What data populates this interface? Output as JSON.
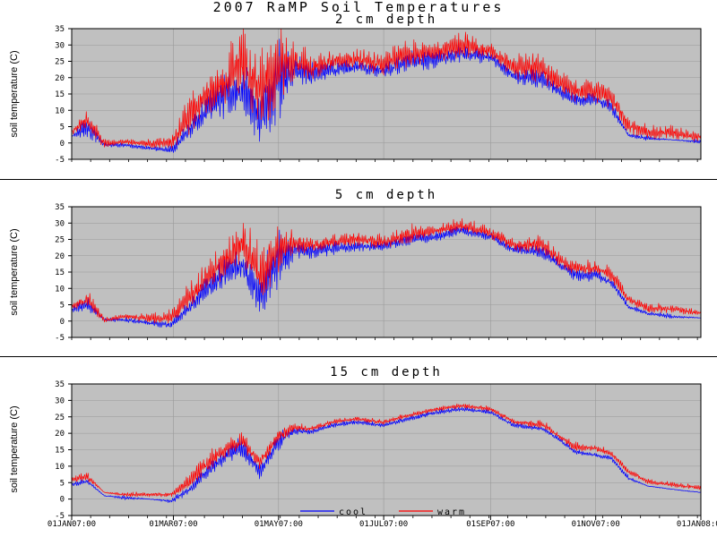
{
  "title": "2007 RaMP Soil Temperatures",
  "chart_data": [
    {
      "type": "line",
      "subtitle": "2 cm depth",
      "ylabel": "soil temperature (C)",
      "ylim": [
        -5,
        35
      ],
      "yticks": [
        -5,
        0,
        5,
        10,
        15,
        20,
        25,
        30,
        35
      ],
      "xlim": [
        "2007-01-01",
        "2008-01-01"
      ],
      "grid": true,
      "series": [
        {
          "name": "cool",
          "color": "#0000ff",
          "x": [
            "2007-01-01",
            "2007-01-10",
            "2007-01-20",
            "2007-02-01",
            "2007-02-15",
            "2007-02-28",
            "2007-03-10",
            "2007-03-20",
            "2007-04-01",
            "2007-04-10",
            "2007-04-20",
            "2007-05-01",
            "2007-05-10",
            "2007-05-20",
            "2007-06-01",
            "2007-06-15",
            "2007-07-01",
            "2007-07-15",
            "2007-08-01",
            "2007-08-15",
            "2007-09-01",
            "2007-09-15",
            "2007-10-01",
            "2007-10-10",
            "2007-10-20",
            "2007-11-01",
            "2007-11-10",
            "2007-11-20",
            "2007-12-01",
            "2007-12-15",
            "2008-01-01"
          ],
          "values": [
            2,
            3,
            -1,
            -1,
            -2,
            -3,
            2,
            7,
            11,
            13,
            2,
            12,
            20,
            19,
            21,
            22,
            21,
            23,
            24,
            26,
            25,
            19,
            18,
            15,
            12,
            12,
            10,
            2,
            1,
            1,
            0
          ],
          "high": [
            2,
            8,
            0,
            0,
            -1,
            -1,
            6,
            14,
            22,
            22,
            15,
            31,
            26,
            24,
            25,
            25,
            24,
            28,
            28,
            30,
            28,
            22,
            22,
            18,
            15,
            15,
            13,
            3,
            2,
            1,
            1
          ]
        },
        {
          "name": "warm",
          "color": "#ff0000",
          "x": [
            "2007-01-01",
            "2007-01-10",
            "2007-01-20",
            "2007-02-01",
            "2007-02-15",
            "2007-02-28",
            "2007-03-10",
            "2007-03-20",
            "2007-04-01",
            "2007-04-10",
            "2007-04-20",
            "2007-05-01",
            "2007-05-10",
            "2007-05-20",
            "2007-06-01",
            "2007-06-15",
            "2007-07-01",
            "2007-07-15",
            "2007-08-01",
            "2007-08-15",
            "2007-09-01",
            "2007-09-15",
            "2007-10-01",
            "2007-10-10",
            "2007-10-20",
            "2007-11-01",
            "2007-11-10",
            "2007-11-20",
            "2007-12-01",
            "2007-12-15",
            "2008-01-01"
          ],
          "values": [
            3,
            5,
            -1,
            0,
            -1,
            -1,
            5,
            11,
            15,
            19,
            9,
            16,
            22,
            21,
            23,
            24,
            22,
            25,
            26,
            28,
            27,
            21,
            20,
            17,
            14,
            14,
            12,
            4,
            2,
            2,
            1
          ],
          "high": [
            4,
            10,
            1,
            1,
            1,
            2,
            14,
            20,
            27,
            34,
            27,
            33,
            30,
            27,
            28,
            28,
            27,
            31,
            30,
            34,
            30,
            26,
            28,
            22,
            19,
            20,
            17,
            8,
            5,
            5,
            3
          ]
        }
      ]
    },
    {
      "type": "line",
      "subtitle": "5 cm depth",
      "ylabel": "soil temperature (C)",
      "ylim": [
        -5,
        35
      ],
      "yticks": [
        -5,
        0,
        5,
        10,
        15,
        20,
        25,
        30,
        35
      ],
      "xlim": [
        "2007-01-01",
        "2008-01-01"
      ],
      "grid": true,
      "series": [
        {
          "name": "cool",
          "color": "#0000ff",
          "x": [
            "2007-01-01",
            "2007-01-10",
            "2007-01-20",
            "2007-02-01",
            "2007-02-15",
            "2007-02-28",
            "2007-03-10",
            "2007-03-20",
            "2007-04-01",
            "2007-04-10",
            "2007-04-20",
            "2007-05-01",
            "2007-05-10",
            "2007-05-20",
            "2007-06-01",
            "2007-06-15",
            "2007-07-01",
            "2007-07-15",
            "2007-08-01",
            "2007-08-15",
            "2007-09-01",
            "2007-09-15",
            "2007-10-01",
            "2007-10-10",
            "2007-10-20",
            "2007-11-01",
            "2007-11-10",
            "2007-11-20",
            "2007-12-01",
            "2007-12-15",
            "2008-01-01"
          ],
          "values": [
            3,
            4,
            0,
            0,
            -1,
            -2,
            3,
            8,
            13,
            15,
            4,
            14,
            20,
            20,
            21,
            22,
            22,
            24,
            25,
            27,
            25,
            21,
            20,
            17,
            13,
            13,
            11,
            4,
            2,
            1,
            1
          ],
          "high": [
            4,
            7,
            1,
            1,
            0,
            0,
            6,
            13,
            19,
            20,
            14,
            28,
            24,
            23,
            24,
            24,
            24,
            27,
            27,
            29,
            27,
            23,
            23,
            19,
            16,
            16,
            13,
            5,
            3,
            2,
            1
          ]
        },
        {
          "name": "warm",
          "color": "#ff0000",
          "x": [
            "2007-01-01",
            "2007-01-10",
            "2007-01-20",
            "2007-02-01",
            "2007-02-15",
            "2007-02-28",
            "2007-03-10",
            "2007-03-20",
            "2007-04-01",
            "2007-04-10",
            "2007-04-20",
            "2007-05-01",
            "2007-05-10",
            "2007-05-20",
            "2007-06-01",
            "2007-06-15",
            "2007-07-01",
            "2007-07-15",
            "2007-08-01",
            "2007-08-15",
            "2007-09-01",
            "2007-09-15",
            "2007-10-01",
            "2007-10-10",
            "2007-10-20",
            "2007-11-01",
            "2007-11-10",
            "2007-11-20",
            "2007-12-01",
            "2007-12-15",
            "2008-01-01"
          ],
          "values": [
            4,
            5,
            0,
            1,
            0,
            0,
            5,
            11,
            16,
            19,
            10,
            17,
            22,
            22,
            23,
            24,
            23,
            25,
            27,
            28,
            26,
            22,
            22,
            18,
            15,
            15,
            13,
            6,
            3,
            3,
            2
          ],
          "high": [
            5,
            9,
            1,
            2,
            2,
            3,
            11,
            17,
            25,
            30,
            23,
            29,
            27,
            25,
            26,
            27,
            26,
            29,
            29,
            31,
            29,
            25,
            26,
            21,
            18,
            18,
            16,
            8,
            5,
            5,
            3
          ]
        }
      ]
    },
    {
      "type": "line",
      "subtitle": "15 cm depth",
      "ylabel": "soil temperature (C)",
      "ylim": [
        -5,
        35
      ],
      "yticks": [
        -5,
        0,
        5,
        10,
        15,
        20,
        25,
        30,
        35
      ],
      "xlim": [
        "2007-01-01",
        "2008-01-01"
      ],
      "xticks": [
        "01JAN07:00",
        "01MAR07:00",
        "01MAY07:00",
        "01JUL07:00",
        "01SEP07:00",
        "01NOV07:00",
        "01JAN08:00"
      ],
      "grid": true,
      "legend": "bottom-center",
      "series": [
        {
          "name": "cool",
          "color": "#0000ff",
          "x": [
            "2007-01-01",
            "2007-01-10",
            "2007-01-20",
            "2007-02-01",
            "2007-02-15",
            "2007-02-28",
            "2007-03-10",
            "2007-03-20",
            "2007-04-01",
            "2007-04-10",
            "2007-04-20",
            "2007-05-01",
            "2007-05-10",
            "2007-05-20",
            "2007-06-01",
            "2007-06-15",
            "2007-07-01",
            "2007-07-15",
            "2007-08-01",
            "2007-08-15",
            "2007-09-01",
            "2007-09-15",
            "2007-10-01",
            "2007-10-10",
            "2007-10-20",
            "2007-11-01",
            "2007-11-10",
            "2007-11-20",
            "2007-12-01",
            "2007-12-15",
            "2008-01-01"
          ],
          "values": [
            4,
            5,
            1,
            0,
            0,
            -1,
            2,
            7,
            12,
            14,
            7,
            16,
            20,
            20,
            22,
            23,
            22,
            24,
            26,
            27,
            26,
            22,
            21,
            18,
            14,
            13,
            12,
            6,
            4,
            3,
            2
          ],
          "high": [
            5,
            6,
            1,
            1,
            0,
            0,
            4,
            10,
            16,
            18,
            10,
            20,
            22,
            21,
            23,
            24,
            23,
            25,
            27,
            28,
            27,
            23,
            22,
            19,
            15,
            14,
            13,
            7,
            4,
            3,
            2
          ]
        },
        {
          "name": "warm",
          "color": "#ff0000",
          "x": [
            "2007-01-01",
            "2007-01-10",
            "2007-01-20",
            "2007-02-01",
            "2007-02-15",
            "2007-02-28",
            "2007-03-10",
            "2007-03-20",
            "2007-04-01",
            "2007-04-10",
            "2007-04-20",
            "2007-05-01",
            "2007-05-10",
            "2007-05-20",
            "2007-06-01",
            "2007-06-15",
            "2007-07-01",
            "2007-07-15",
            "2007-08-01",
            "2007-08-15",
            "2007-09-01",
            "2007-09-15",
            "2007-10-01",
            "2007-10-10",
            "2007-10-20",
            "2007-11-01",
            "2007-11-10",
            "2007-11-20",
            "2007-12-01",
            "2007-12-15",
            "2008-01-01"
          ],
          "values": [
            5,
            6,
            2,
            1,
            1,
            1,
            4,
            9,
            14,
            16,
            10,
            18,
            21,
            21,
            23,
            24,
            23,
            25,
            27,
            28,
            27,
            23,
            22,
            19,
            15,
            15,
            13,
            8,
            5,
            4,
            3
          ],
          "high": [
            7,
            8,
            2,
            2,
            2,
            2,
            7,
            13,
            18,
            20,
            13,
            21,
            23,
            22,
            24,
            25,
            24,
            26,
            28,
            29,
            28,
            24,
            24,
            20,
            17,
            16,
            15,
            9,
            6,
            5,
            4
          ]
        }
      ]
    }
  ]
}
